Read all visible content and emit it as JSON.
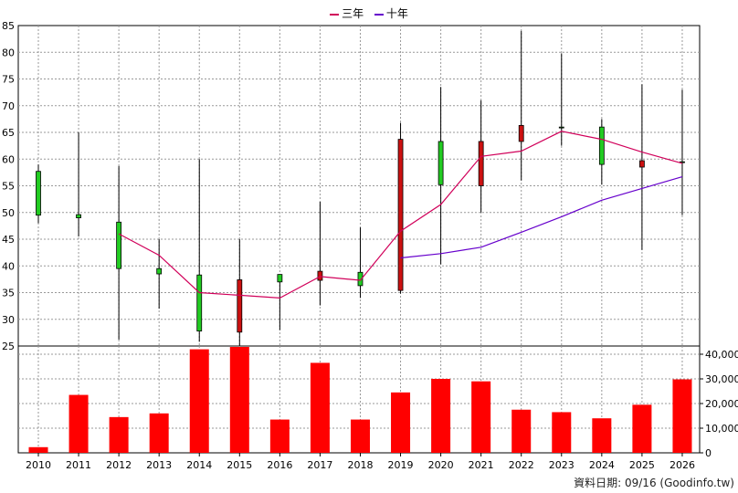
{
  "legend": {
    "three_year": {
      "label": "三年",
      "color": "#d1005a"
    },
    "ten_year": {
      "label": "十年",
      "color": "#6600cc"
    }
  },
  "footer": {
    "text": "資料日期: 09/16 (Goodinfo.tw)"
  },
  "chart_data": [
    {
      "type": "candlestick",
      "x": [
        "2010",
        "2011",
        "2012",
        "2013",
        "2014",
        "2015",
        "2016",
        "2017",
        "2018",
        "2019",
        "2020",
        "2021",
        "2022",
        "2023",
        "2024",
        "2025",
        "2026"
      ],
      "candles": [
        {
          "open": 49.5,
          "close": 57.7,
          "high": 59.0,
          "low": 48.0
        },
        {
          "open": 49.0,
          "close": 49.6,
          "high": 65.0,
          "low": 45.5
        },
        {
          "open": 39.5,
          "close": 48.2,
          "high": 58.7,
          "low": 26.2
        },
        {
          "open": 38.5,
          "close": 39.5,
          "high": 45.0,
          "low": 32.0
        },
        {
          "open": 27.8,
          "close": 38.3,
          "high": 60.0,
          "low": 25.8
        },
        {
          "open": 37.4,
          "close": 27.6,
          "high": 45.0,
          "low": 24.5
        },
        {
          "open": 37.0,
          "close": 38.4,
          "high": 38.4,
          "low": 28.0
        },
        {
          "open": 39.0,
          "close": 37.3,
          "high": 52.0,
          "low": 32.6
        },
        {
          "open": 36.3,
          "close": 38.8,
          "high": 47.2,
          "low": 34.0
        },
        {
          "open": 63.7,
          "close": 35.4,
          "high": 66.8,
          "low": 34.8
        },
        {
          "open": 55.2,
          "close": 63.3,
          "high": 73.5,
          "low": 40.3
        },
        {
          "open": 63.3,
          "close": 55.0,
          "high": 71.0,
          "low": 50.0
        },
        {
          "open": 66.3,
          "close": 63.3,
          "high": 84.0,
          "low": 56.0
        },
        {
          "open": 66.0,
          "close": 66.0,
          "high": 79.8,
          "low": 62.5
        },
        {
          "open": 59.0,
          "close": 66.0,
          "high": 67.5,
          "low": 55.2
        },
        {
          "open": 59.7,
          "close": 58.5,
          "high": 74.0,
          "low": 43.0
        },
        {
          "open": 59.5,
          "close": 59.5,
          "high": 73.0,
          "low": 49.5
        }
      ],
      "series": [
        {
          "name": "三年",
          "values": [
            null,
            null,
            46.0,
            42.0,
            35.0,
            34.5,
            34.0,
            38.0,
            37.3,
            46.5,
            51.5,
            60.5,
            61.5,
            65.2,
            63.7,
            61.3,
            59.2
          ]
        },
        {
          "name": "十年",
          "values": [
            null,
            null,
            null,
            null,
            null,
            null,
            null,
            null,
            null,
            41.5,
            42.3,
            43.5,
            46.3,
            49.2,
            52.3,
            54.5,
            56.7
          ]
        }
      ],
      "ylim": [
        25,
        85
      ],
      "yticks": [
        25,
        30,
        35,
        40,
        45,
        50,
        55,
        60,
        65,
        70,
        75,
        80,
        85
      ],
      "grid": true,
      "legend_position": "top-center",
      "colors": {
        "up": "#22cc22",
        "down": "#cc1111",
        "wick": "#000000"
      }
    },
    {
      "type": "bar",
      "categories": [
        "2010",
        "2011",
        "2012",
        "2013",
        "2014",
        "2015",
        "2016",
        "2017",
        "2018",
        "2019",
        "2020",
        "2021",
        "2022",
        "2023",
        "2024",
        "2025",
        "2026"
      ],
      "values": [
        2300,
        23500,
        14500,
        16000,
        42000,
        44000,
        13500,
        36500,
        13500,
        24500,
        30000,
        29000,
        17500,
        16500,
        14000,
        19500,
        29800
      ],
      "ylim": [
        0,
        40000
      ],
      "yticks": [
        0,
        10000,
        20000,
        30000,
        40000
      ],
      "ytick_labels": [
        "0",
        "10,000",
        "20,000",
        "30,000",
        "40,000"
      ],
      "color": "#ff0000",
      "grid": true
    }
  ]
}
